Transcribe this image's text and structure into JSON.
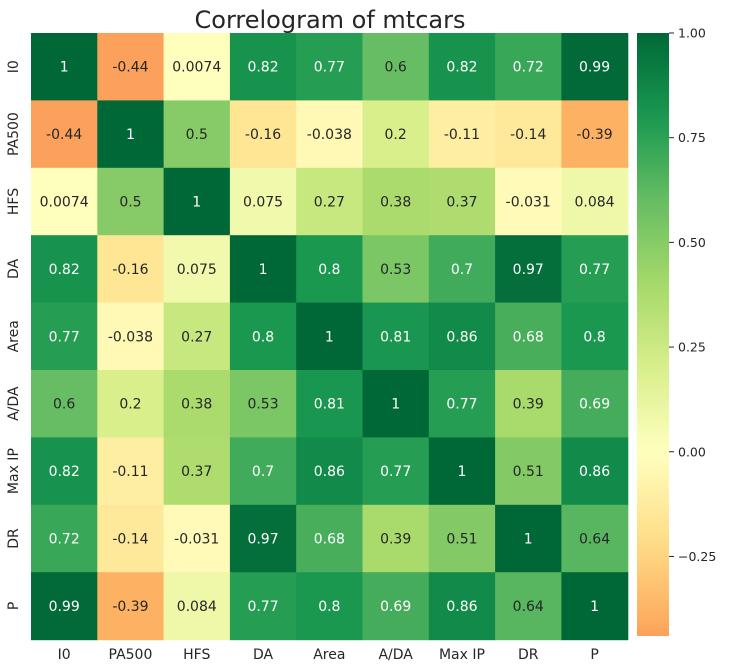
{
  "chart_data": {
    "type": "heatmap",
    "title": "Correlogram of mtcars",
    "row_labels": [
      "I0",
      "PA500",
      "HFS",
      "DA",
      "Area",
      "A/DA",
      "Max IP",
      "DR",
      "P"
    ],
    "col_labels": [
      "I0",
      "PA500",
      "HFS",
      "DA",
      "Area",
      "A/DA",
      "Max IP",
      "DR",
      "P"
    ],
    "matrix": [
      [
        1,
        -0.44,
        0.0074,
        0.82,
        0.77,
        0.6,
        0.82,
        0.72,
        0.99
      ],
      [
        -0.44,
        1,
        0.5,
        -0.16,
        -0.038,
        0.2,
        -0.11,
        -0.14,
        -0.39
      ],
      [
        0.0074,
        0.5,
        1,
        0.075,
        0.27,
        0.38,
        0.37,
        -0.031,
        0.084
      ],
      [
        0.82,
        -0.16,
        0.075,
        1,
        0.8,
        0.53,
        0.7,
        0.97,
        0.77
      ],
      [
        0.77,
        -0.038,
        0.27,
        0.8,
        1,
        0.81,
        0.86,
        0.68,
        0.8
      ],
      [
        0.6,
        0.2,
        0.38,
        0.53,
        0.81,
        1,
        0.77,
        0.39,
        0.69
      ],
      [
        0.82,
        -0.11,
        0.37,
        0.7,
        0.86,
        0.77,
        1,
        0.51,
        0.86
      ],
      [
        0.72,
        -0.14,
        -0.031,
        0.97,
        0.68,
        0.39,
        0.51,
        1,
        0.64
      ],
      [
        0.99,
        -0.39,
        0.084,
        0.77,
        0.8,
        0.69,
        0.86,
        0.64,
        1
      ]
    ],
    "annotations": [
      [
        "1",
        "-0.44",
        "0.0074",
        "0.82",
        "0.77",
        "0.6",
        "0.82",
        "0.72",
        "0.99"
      ],
      [
        "-0.44",
        "1",
        "0.5",
        "-0.16",
        "-0.038",
        "0.2",
        "-0.11",
        "-0.14",
        "-0.39"
      ],
      [
        "0.0074",
        "0.5",
        "1",
        "0.075",
        "0.27",
        "0.38",
        "0.37",
        "-0.031",
        "0.084"
      ],
      [
        "0.82",
        "-0.16",
        "0.075",
        "1",
        "0.8",
        "0.53",
        "0.7",
        "0.97",
        "0.77"
      ],
      [
        "0.77",
        "-0.038",
        "0.27",
        "0.8",
        "1",
        "0.81",
        "0.86",
        "0.68",
        "0.8"
      ],
      [
        "0.6",
        "0.2",
        "0.38",
        "0.53",
        "0.81",
        "1",
        "0.77",
        "0.39",
        "0.69"
      ],
      [
        "0.82",
        "-0.11",
        "0.37",
        "0.7",
        "0.86",
        "0.77",
        "1",
        "0.51",
        "0.86"
      ],
      [
        "0.72",
        "-0.14",
        "-0.031",
        "0.97",
        "0.68",
        "0.39",
        "0.51",
        "1",
        "0.64"
      ],
      [
        "0.99",
        "-0.39",
        "0.084",
        "0.77",
        "0.8",
        "0.69",
        "0.86",
        "0.64",
        "1"
      ]
    ],
    "colorbar": {
      "min": -0.44,
      "max": 1.0,
      "ticks": [
        1.0,
        0.75,
        0.5,
        0.25,
        0.0,
        -0.25
      ],
      "tick_labels": [
        "1.00",
        "0.75",
        "0.50",
        "0.25",
        "0.00",
        "−0.25"
      ]
    },
    "colormap": "RdYlGn",
    "colormap_stops": [
      "#a50026",
      "#d73027",
      "#f46d43",
      "#fdae61",
      "#fee08b",
      "#ffffbf",
      "#d9ef8b",
      "#a6d96a",
      "#66bd63",
      "#1a9850",
      "#006837"
    ]
  }
}
